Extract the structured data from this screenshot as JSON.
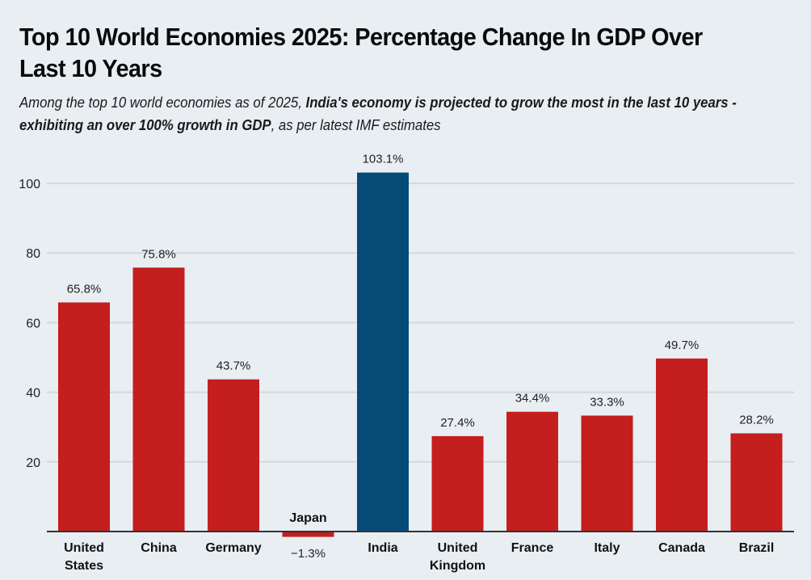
{
  "header": {
    "title": "Top 10 World Economies 2025: Percentage Change In GDP Over Last 10 Years",
    "subtitle_parts": [
      {
        "text": "Among the top 10 world economies as of 2025, ",
        "bold": false
      },
      {
        "text": "India's economy is projected to grow the most in the last 10 years - exhibiting an over 100% growth in GDP",
        "bold": true
      },
      {
        "text": ", as per latest IMF estimates",
        "bold": false
      }
    ]
  },
  "colors": {
    "default_bar": "#c41e1e",
    "highlight_bar": "#064a78",
    "gridline": "#d3d8dd",
    "axis": "#333333",
    "background": "#e9eef3"
  },
  "chart_data": {
    "type": "bar",
    "title": "Top 10 World Economies 2025: Percentage Change In GDP Over Last 10 Years",
    "xlabel": "",
    "ylabel": "",
    "ylim": [
      -3,
      103.1
    ],
    "yticks": [
      20,
      40,
      60,
      80,
      100
    ],
    "grid": true,
    "legend": "none",
    "categories": [
      "United States",
      "China",
      "Germany",
      "Japan",
      "India",
      "United Kingdom",
      "France",
      "Italy",
      "Canada",
      "Brazil"
    ],
    "category_lines": [
      [
        "United",
        "States"
      ],
      [
        "China"
      ],
      [
        "Germany"
      ],
      [
        "Japan"
      ],
      [
        "India"
      ],
      [
        "United",
        "Kingdom"
      ],
      [
        "France"
      ],
      [
        "Italy"
      ],
      [
        "Canada"
      ],
      [
        "Brazil"
      ]
    ],
    "values": [
      65.8,
      75.8,
      43.7,
      -1.3,
      103.1,
      27.4,
      34.4,
      33.3,
      49.7,
      28.2
    ],
    "value_labels": [
      "65.8%",
      "75.8%",
      "43.7%",
      "−1.3%",
      "103.1%",
      "27.4%",
      "34.4%",
      "33.3%",
      "49.7%",
      "28.2%"
    ],
    "highlight": "India"
  }
}
